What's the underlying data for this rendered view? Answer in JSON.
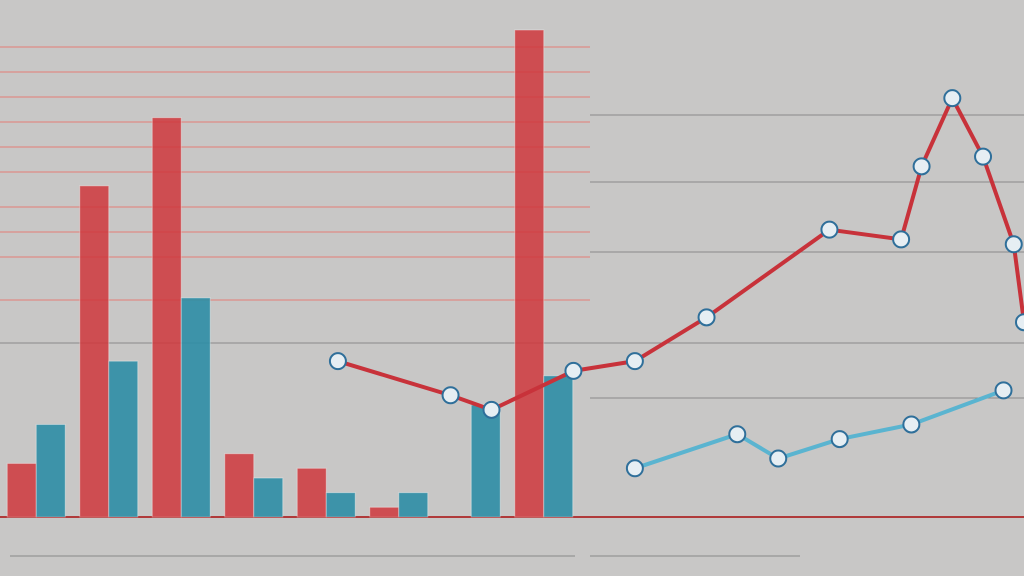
{
  "chart_data": [
    {
      "type": "bar",
      "categories": [
        null,
        null,
        null,
        null,
        null,
        null,
        null,
        null
      ],
      "series": [
        {
          "color": "#d0383d",
          "values": [
            11,
            68,
            82,
            13,
            10,
            2,
            0,
            100
          ]
        },
        {
          "color": "#2f8ea6",
          "values": [
            19,
            32,
            45,
            8,
            5,
            5,
            23,
            29
          ]
        }
      ],
      "ylim": [
        0,
        100
      ]
    },
    {
      "type": "line",
      "color": "#c8323a",
      "x": [
        33,
        44,
        48,
        56,
        62,
        69,
        81,
        88,
        90,
        93,
        96,
        99,
        100
      ],
      "values": [
        32,
        25,
        22,
        30,
        32,
        41,
        59,
        57,
        72,
        86,
        74,
        56,
        40
      ],
      "xlim": [
        0,
        100
      ],
      "ylim": [
        0,
        100
      ]
    },
    {
      "type": "line",
      "color": "#5ab4d0",
      "x": [
        62,
        72,
        76,
        82,
        89,
        98
      ],
      "values": [
        10,
        17,
        12,
        16,
        19,
        26
      ],
      "xlim": [
        0,
        100
      ],
      "ylim": [
        0,
        100
      ]
    }
  ]
}
